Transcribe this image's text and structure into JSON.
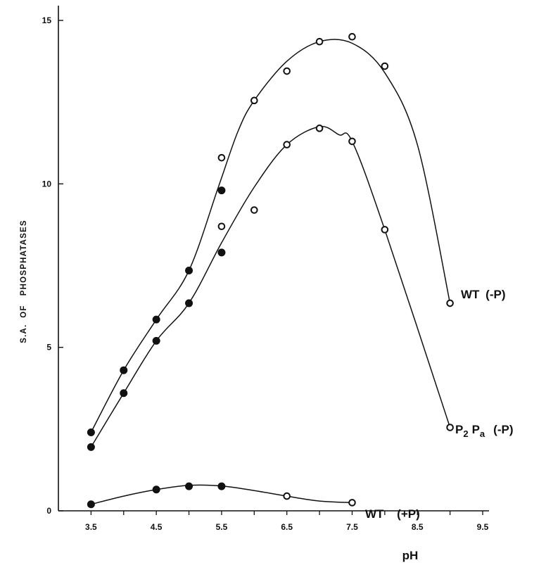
{
  "chart_data": {
    "type": "line",
    "title": "",
    "xlabel": "pH",
    "ylabel": "S.A.  OF   PHOSPHATASES",
    "xlim": [
      3,
      9.7
    ],
    "ylim": [
      0,
      15.5
    ],
    "xticks": [
      3.5,
      4.5,
      5.5,
      6.5,
      7.5,
      8.5,
      9.5
    ],
    "xtick_labels": [
      "3.5",
      "4.5",
      "5.5",
      "6.5",
      "7.5",
      "8.5",
      "9.5"
    ],
    "yticks": [
      0,
      5,
      10,
      15
    ],
    "ytick_labels": [
      "0",
      "5",
      "10",
      "15"
    ],
    "grid": false,
    "legend": "none",
    "series": [
      {
        "name": "WT (-P)",
        "label": {
          "main": "WT",
          "p": "P",
          "cond": "(-P)"
        },
        "points": [
          {
            "x": 3.5,
            "y": 2.4,
            "marker": "filled"
          },
          {
            "x": 4.0,
            "y": 4.3,
            "marker": "filled"
          },
          {
            "x": 4.5,
            "y": 5.85,
            "marker": "filled"
          },
          {
            "x": 5.0,
            "y": 7.35,
            "marker": "filled"
          },
          {
            "x": 5.5,
            "y": 9.8,
            "marker": "filled"
          },
          {
            "x": 5.5,
            "y": 10.8,
            "marker": "open"
          },
          {
            "x": 6.0,
            "y": 12.55,
            "marker": "open"
          },
          {
            "x": 6.5,
            "y": 13.45,
            "marker": "open"
          },
          {
            "x": 7.0,
            "y": 14.35,
            "marker": "open"
          },
          {
            "x": 7.5,
            "y": 14.5,
            "marker": "open"
          },
          {
            "x": 8.0,
            "y": 13.6,
            "marker": "open"
          },
          {
            "x": 9.0,
            "y": 6.35,
            "marker": "open"
          }
        ],
        "curve": [
          [
            3.5,
            2.4
          ],
          [
            4.0,
            4.3
          ],
          [
            4.5,
            5.85
          ],
          [
            5.0,
            7.35
          ],
          [
            5.45,
            9.9
          ],
          [
            5.75,
            11.6
          ],
          [
            6.0,
            12.55
          ],
          [
            6.5,
            13.75
          ],
          [
            7.0,
            14.35
          ],
          [
            7.5,
            14.3
          ],
          [
            8.0,
            13.4
          ],
          [
            8.5,
            11.2
          ],
          [
            9.0,
            6.35
          ]
        ]
      },
      {
        "name": "P2 Pa (-P)",
        "label": {
          "main": "P",
          "sub1": "2",
          "p": "P",
          "sub2": "a",
          "cond": "(-P)"
        },
        "points": [
          {
            "x": 3.5,
            "y": 1.95,
            "marker": "filled"
          },
          {
            "x": 4.0,
            "y": 3.6,
            "marker": "filled"
          },
          {
            "x": 4.5,
            "y": 5.2,
            "marker": "filled"
          },
          {
            "x": 5.0,
            "y": 6.35,
            "marker": "filled"
          },
          {
            "x": 5.5,
            "y": 7.9,
            "marker": "filled"
          },
          {
            "x": 5.5,
            "y": 8.7,
            "marker": "open"
          },
          {
            "x": 6.0,
            "y": 9.2,
            "marker": "open"
          },
          {
            "x": 6.5,
            "y": 11.2,
            "marker": "open"
          },
          {
            "x": 7.0,
            "y": 11.7,
            "marker": "open"
          },
          {
            "x": 7.5,
            "y": 11.3,
            "marker": "open"
          },
          {
            "x": 8.0,
            "y": 8.6,
            "marker": "open"
          },
          {
            "x": 9.0,
            "y": 2.55,
            "marker": "open"
          }
        ],
        "curve": [
          [
            3.5,
            1.95
          ],
          [
            4.0,
            3.6
          ],
          [
            4.5,
            5.2
          ],
          [
            5.0,
            6.35
          ],
          [
            5.5,
            8.2
          ],
          [
            6.0,
            9.9
          ],
          [
            6.5,
            11.2
          ],
          [
            7.0,
            11.75
          ],
          [
            7.3,
            11.5
          ],
          [
            7.5,
            11.3
          ],
          [
            8.0,
            8.6
          ],
          [
            9.0,
            2.55
          ]
        ]
      },
      {
        "name": "WT (+P)",
        "label": {
          "main": "WT",
          "p": "P",
          "cond": "(+P)"
        },
        "points": [
          {
            "x": 3.5,
            "y": 0.2,
            "marker": "filled"
          },
          {
            "x": 4.5,
            "y": 0.65,
            "marker": "filled"
          },
          {
            "x": 5.0,
            "y": 0.75,
            "marker": "filled"
          },
          {
            "x": 5.5,
            "y": 0.75,
            "marker": "filled"
          },
          {
            "x": 6.5,
            "y": 0.45,
            "marker": "open"
          },
          {
            "x": 7.5,
            "y": 0.25,
            "marker": "open"
          }
        ],
        "curve": [
          [
            3.5,
            0.2
          ],
          [
            4.0,
            0.45
          ],
          [
            4.5,
            0.65
          ],
          [
            5.0,
            0.78
          ],
          [
            5.5,
            0.76
          ],
          [
            6.0,
            0.62
          ],
          [
            6.5,
            0.45
          ],
          [
            7.0,
            0.3
          ],
          [
            7.5,
            0.25
          ]
        ]
      }
    ]
  }
}
